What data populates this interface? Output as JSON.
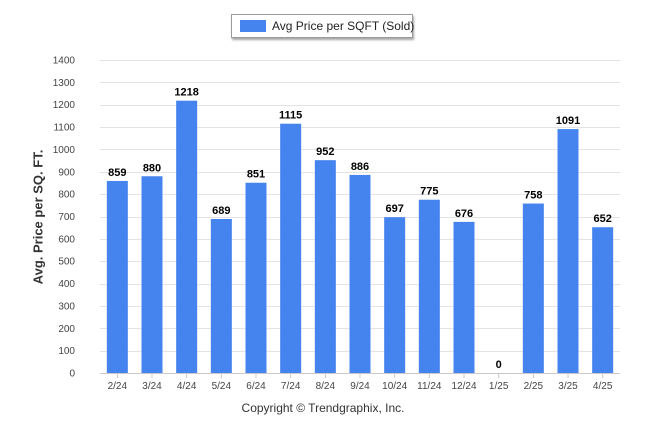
{
  "chart_data": {
    "type": "bar",
    "title": "",
    "xlabel": "",
    "ylabel": "Avg. Price per SQ. FT.",
    "categories": [
      "2/24",
      "3/24",
      "4/24",
      "5/24",
      "6/24",
      "7/24",
      "8/24",
      "9/24",
      "10/24",
      "11/24",
      "12/24",
      "1/25",
      "2/25",
      "3/25",
      "4/25"
    ],
    "series": [
      {
        "name": "Avg Price per SQFT (Sold)",
        "values": [
          859,
          880,
          1218,
          689,
          851,
          1115,
          952,
          886,
          697,
          775,
          676,
          0,
          758,
          1091,
          652
        ]
      }
    ],
    "ylim": [
      0,
      1400
    ],
    "yticks": [
      0,
      100,
      200,
      300,
      400,
      500,
      600,
      700,
      800,
      900,
      1000,
      1100,
      1200,
      1300,
      1400
    ],
    "grid": true,
    "legend_position": "top-center",
    "bar_color": "#4584ee",
    "footer": "Copyright © Trendgraphix, Inc."
  }
}
